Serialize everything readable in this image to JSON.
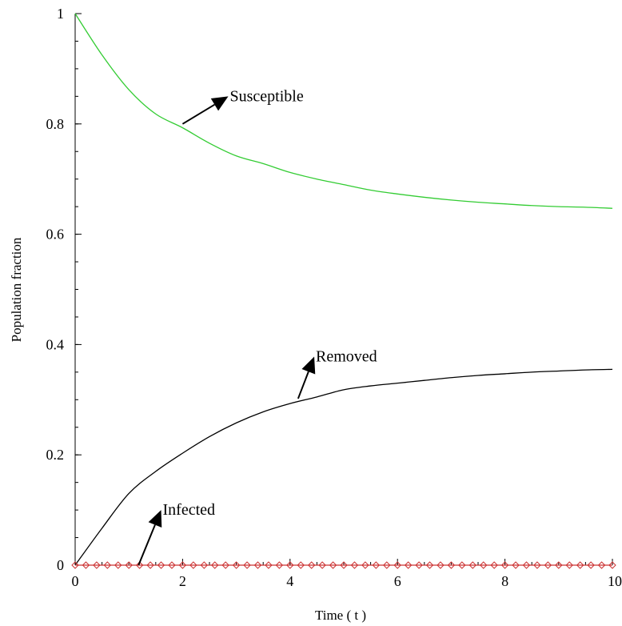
{
  "chart_data": {
    "type": "line",
    "xlabel": "Time ( t )",
    "ylabel": "Population fraction",
    "xlim": [
      0,
      10
    ],
    "ylim": [
      0,
      1
    ],
    "x_ticks": [
      0,
      2,
      4,
      6,
      8,
      10
    ],
    "y_ticks": [
      0,
      0.2,
      0.4,
      0.6,
      0.8,
      1
    ],
    "x_tick_labels": [
      "0",
      "2",
      "4",
      "6",
      "8",
      "10"
    ],
    "y_tick_labels": [
      "0",
      "0.2",
      "0.4",
      "0.6",
      "0.8",
      "1"
    ],
    "grid": false,
    "x": [
      0,
      0.5,
      1,
      1.5,
      2,
      2.5,
      3,
      3.5,
      4,
      4.5,
      5,
      5.5,
      6,
      6.5,
      7,
      7.5,
      8,
      8.5,
      9,
      9.5,
      10
    ],
    "series": [
      {
        "color": "#33cc33",
        "values": [
          1.0,
          0.925,
          0.862,
          0.818,
          0.793,
          0.765,
          0.742,
          0.728,
          0.712,
          0.7,
          0.69,
          0.68,
          0.673,
          0.667,
          0.662,
          0.658,
          0.655,
          0.652,
          0.65,
          0.649,
          0.647
        ]
      },
      {
        "color": "#000000",
        "values": [
          0.0,
          0.067,
          0.13,
          0.17,
          0.203,
          0.233,
          0.258,
          0.278,
          0.293,
          0.305,
          0.318,
          0.325,
          0.33,
          0.335,
          0.34,
          0.344,
          0.347,
          0.35,
          0.352,
          0.354,
          0.355
        ]
      },
      {
        "color": "#cc3333",
        "marker": "diamond",
        "values": [
          0,
          0,
          0,
          0,
          0,
          0,
          0,
          0,
          0,
          0,
          0,
          0,
          0,
          0,
          0,
          0,
          0,
          0,
          0,
          0,
          0
        ]
      }
    ],
    "annotations": [
      {
        "text": "Susceptible",
        "arrow_from": [
          2.0,
          0.8
        ],
        "arrow_to": [
          2.85,
          0.85
        ]
      },
      {
        "text": "Removed",
        "arrow_from": [
          4.15,
          0.302
        ],
        "arrow_to": [
          4.45,
          0.378
        ]
      },
      {
        "text": "Infected",
        "arrow_from": [
          1.18,
          0.0
        ],
        "arrow_to": [
          1.6,
          0.1
        ]
      }
    ]
  }
}
